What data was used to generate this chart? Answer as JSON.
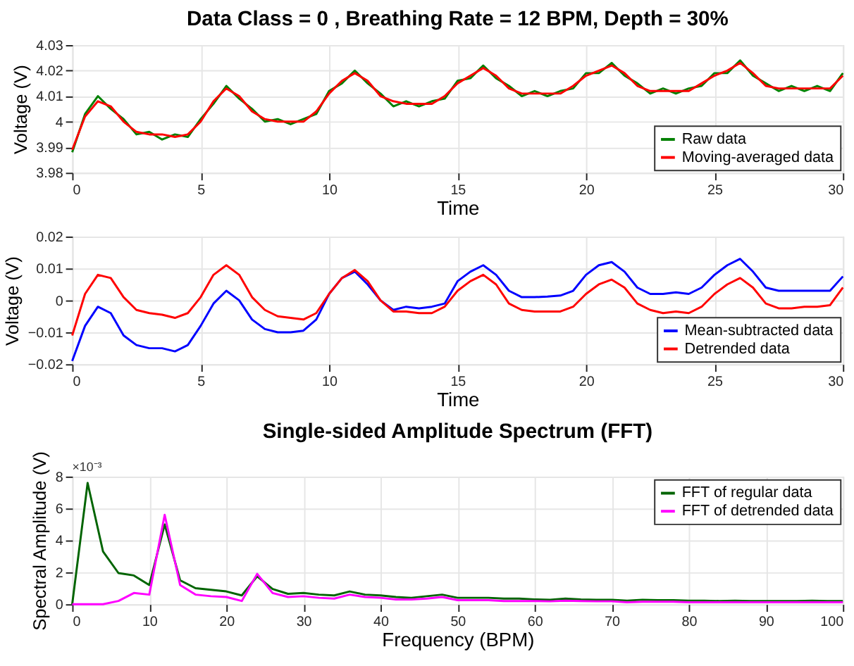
{
  "chart_data": [
    {
      "type": "line",
      "title": "Data Class = 0 , Breathing Rate = 12 BPM, Depth = 30%",
      "xlabel": "Time",
      "ylabel": "Voltage (V)",
      "x": [
        0,
        0.5,
        1,
        1.5,
        2,
        2.5,
        3,
        3.5,
        4,
        4.5,
        5,
        5.5,
        6,
        6.5,
        7,
        7.5,
        8,
        8.5,
        9,
        9.5,
        10,
        10.5,
        11,
        11.5,
        12,
        12.5,
        13,
        13.5,
        14,
        14.5,
        15,
        15.5,
        16,
        16.5,
        17,
        17.5,
        18,
        18.5,
        19,
        19.5,
        20,
        20.5,
        21,
        21.5,
        22,
        22.5,
        23,
        23.5,
        24,
        24.5,
        25,
        25.5,
        26,
        26.5,
        27,
        27.5,
        28,
        28.5,
        29,
        29.5,
        30
      ],
      "series": [
        {
          "name": "Raw data",
          "color": "#008000",
          "values": [
            3.988,
            4.003,
            4.01,
            4.005,
            4.001,
            3.995,
            3.996,
            3.993,
            3.995,
            3.994,
            4.001,
            4.007,
            4.014,
            4.009,
            4.005,
            4.0,
            4.001,
            3.999,
            4.001,
            4.003,
            4.012,
            4.015,
            4.02,
            4.015,
            4.011,
            4.006,
            4.008,
            4.006,
            4.008,
            4.009,
            4.016,
            4.017,
            4.022,
            4.017,
            4.014,
            4.01,
            4.012,
            4.01,
            4.012,
            4.013,
            4.019,
            4.019,
            4.023,
            4.018,
            4.015,
            4.011,
            4.013,
            4.011,
            4.013,
            4.014,
            4.019,
            4.019,
            4.024,
            4.018,
            4.015,
            4.012,
            4.014,
            4.012,
            4.014,
            4.012,
            4.019
          ]
        },
        {
          "name": "Moving-averaged data",
          "color": "#ff0000",
          "values": [
            3.989,
            4.002,
            4.008,
            4.006,
            4.0,
            3.996,
            3.995,
            3.995,
            3.994,
            3.995,
            4.0,
            4.008,
            4.013,
            4.01,
            4.004,
            4.001,
            4.0,
            4.0,
            4.0,
            4.004,
            4.011,
            4.016,
            4.019,
            4.016,
            4.01,
            4.008,
            4.007,
            4.007,
            4.007,
            4.01,
            4.015,
            4.018,
            4.021,
            4.018,
            4.013,
            4.011,
            4.011,
            4.011,
            4.011,
            4.014,
            4.018,
            4.02,
            4.022,
            4.019,
            4.014,
            4.012,
            4.012,
            4.012,
            4.012,
            4.015,
            4.018,
            4.02,
            4.023,
            4.019,
            4.014,
            4.013,
            4.013,
            4.013,
            4.013,
            4.013,
            4.018
          ]
        }
      ],
      "xlim": [
        0,
        30
      ],
      "xticks": [
        0,
        5,
        10,
        15,
        20,
        25,
        30
      ],
      "ylim": [
        3.98,
        4.03
      ],
      "yticks": [
        3.98,
        3.99,
        4,
        4.01,
        4.02,
        4.03
      ],
      "grid": true,
      "legend": "bottom right"
    },
    {
      "type": "line",
      "xlabel": "Time",
      "ylabel": "Voltage (V)",
      "x": [
        0,
        0.5,
        1,
        1.5,
        2,
        2.5,
        3,
        3.5,
        4,
        4.5,
        5,
        5.5,
        6,
        6.5,
        7,
        7.5,
        8,
        8.5,
        9,
        9.5,
        10,
        10.5,
        11,
        11.5,
        12,
        12.5,
        13,
        13.5,
        14,
        14.5,
        15,
        15.5,
        16,
        16.5,
        17,
        17.5,
        18,
        18.5,
        19,
        19.5,
        20,
        20.5,
        21,
        21.5,
        22,
        22.5,
        23,
        23.5,
        24,
        24.5,
        25,
        25.5,
        26,
        26.5,
        27,
        27.5,
        28,
        28.5,
        29,
        29.5,
        30
      ],
      "series": [
        {
          "name": "Mean-subtracted data",
          "color": "#0000ff",
          "values": [
            -0.019,
            -0.008,
            -0.002,
            -0.004,
            -0.011,
            -0.014,
            -0.015,
            -0.015,
            -0.016,
            -0.014,
            -0.008,
            -0.001,
            0.003,
            0.0,
            -0.006,
            -0.009,
            -0.01,
            -0.01,
            -0.0095,
            -0.006,
            0.002,
            0.007,
            0.009,
            0.005,
            0.0,
            -0.003,
            -0.002,
            -0.0025,
            -0.002,
            -0.001,
            0.006,
            0.009,
            0.011,
            0.008,
            0.003,
            0.001,
            0.001,
            0.0012,
            0.0015,
            0.003,
            0.008,
            0.011,
            0.012,
            0.009,
            0.004,
            0.002,
            0.002,
            0.0025,
            0.002,
            0.004,
            0.008,
            0.011,
            0.013,
            0.009,
            0.004,
            0.003,
            0.003,
            0.003,
            0.003,
            0.003,
            0.0075
          ]
        },
        {
          "name": "Detrended data",
          "color": "#ff0000",
          "values": [
            -0.011,
            0.002,
            0.008,
            0.007,
            0.001,
            -0.003,
            -0.004,
            -0.0045,
            -0.0055,
            -0.004,
            0.001,
            0.008,
            0.011,
            0.008,
            0.001,
            -0.003,
            -0.005,
            -0.0055,
            -0.006,
            -0.004,
            0.002,
            0.007,
            0.0095,
            0.006,
            0.0,
            -0.0035,
            -0.0035,
            -0.004,
            -0.004,
            -0.002,
            0.003,
            0.006,
            0.008,
            0.005,
            -0.001,
            -0.003,
            -0.0035,
            -0.0035,
            -0.0035,
            -0.002,
            0.002,
            0.005,
            0.0065,
            0.004,
            -0.001,
            -0.003,
            -0.004,
            -0.0035,
            -0.004,
            -0.002,
            0.002,
            0.005,
            0.007,
            0.004,
            -0.001,
            -0.0025,
            -0.0025,
            -0.002,
            -0.002,
            -0.0015,
            0.004
          ]
        }
      ],
      "xlim": [
        0,
        30
      ],
      "xticks": [
        0,
        5,
        10,
        15,
        20,
        25,
        30
      ],
      "ylim": [
        -0.02,
        0.02
      ],
      "yticks": [
        -0.02,
        -0.01,
        0,
        0.01,
        0.02
      ],
      "grid": true,
      "legend": "bottom right"
    },
    {
      "type": "line",
      "title": "Single-sided Amplitude Spectrum (FFT)",
      "xlabel": "Frequency (BPM)",
      "ylabel": "Spectral Amplitude (V)",
      "annotations": [
        "×10⁻³"
      ],
      "x": [
        0,
        2,
        4,
        6,
        8,
        10,
        12,
        14,
        16,
        18,
        20,
        22,
        24,
        26,
        28,
        30,
        32,
        34,
        36,
        38,
        40,
        42,
        44,
        46,
        48,
        50,
        52,
        54,
        56,
        58,
        60,
        62,
        64,
        66,
        68,
        70,
        72,
        74,
        76,
        78,
        80,
        82,
        84,
        86,
        88,
        90,
        92,
        94,
        96,
        98,
        100
      ],
      "series": [
        {
          "name": "FFT of regular data",
          "color": "#006400",
          "values": [
            0,
            7.6,
            3.3,
            1.95,
            1.8,
            1.2,
            5.0,
            1.5,
            1.0,
            0.9,
            0.8,
            0.55,
            1.75,
            0.95,
            0.65,
            0.7,
            0.6,
            0.55,
            0.8,
            0.6,
            0.55,
            0.45,
            0.4,
            0.5,
            0.6,
            0.4,
            0.4,
            0.4,
            0.35,
            0.35,
            0.3,
            0.28,
            0.35,
            0.3,
            0.28,
            0.28,
            0.22,
            0.28,
            0.25,
            0.25,
            0.22,
            0.22,
            0.2,
            0.22,
            0.2,
            0.2,
            0.2,
            0.2,
            0.22,
            0.2,
            0.2
          ]
        },
        {
          "name": "FFT of detrended data",
          "color": "#ff00ff",
          "values": [
            0,
            0,
            0,
            0.2,
            0.7,
            0.6,
            5.6,
            1.2,
            0.6,
            0.5,
            0.45,
            0.2,
            1.9,
            0.7,
            0.45,
            0.5,
            0.4,
            0.35,
            0.6,
            0.45,
            0.4,
            0.3,
            0.3,
            0.35,
            0.45,
            0.25,
            0.25,
            0.25,
            0.2,
            0.2,
            0.2,
            0.18,
            0.22,
            0.2,
            0.18,
            0.18,
            0.12,
            0.15,
            0.15,
            0.15,
            0.12,
            0.12,
            0.12,
            0.12,
            0.12,
            0.12,
            0.12,
            0.12,
            0.12,
            0.12,
            0.12
          ]
        }
      ],
      "xlim": [
        0,
        100
      ],
      "xticks": [
        0,
        10,
        20,
        30,
        40,
        50,
        60,
        70,
        80,
        90,
        100
      ],
      "ylim": [
        0,
        8
      ],
      "yticks": [
        0,
        2,
        4,
        6,
        8
      ],
      "grid": true,
      "legend": "top right"
    }
  ]
}
